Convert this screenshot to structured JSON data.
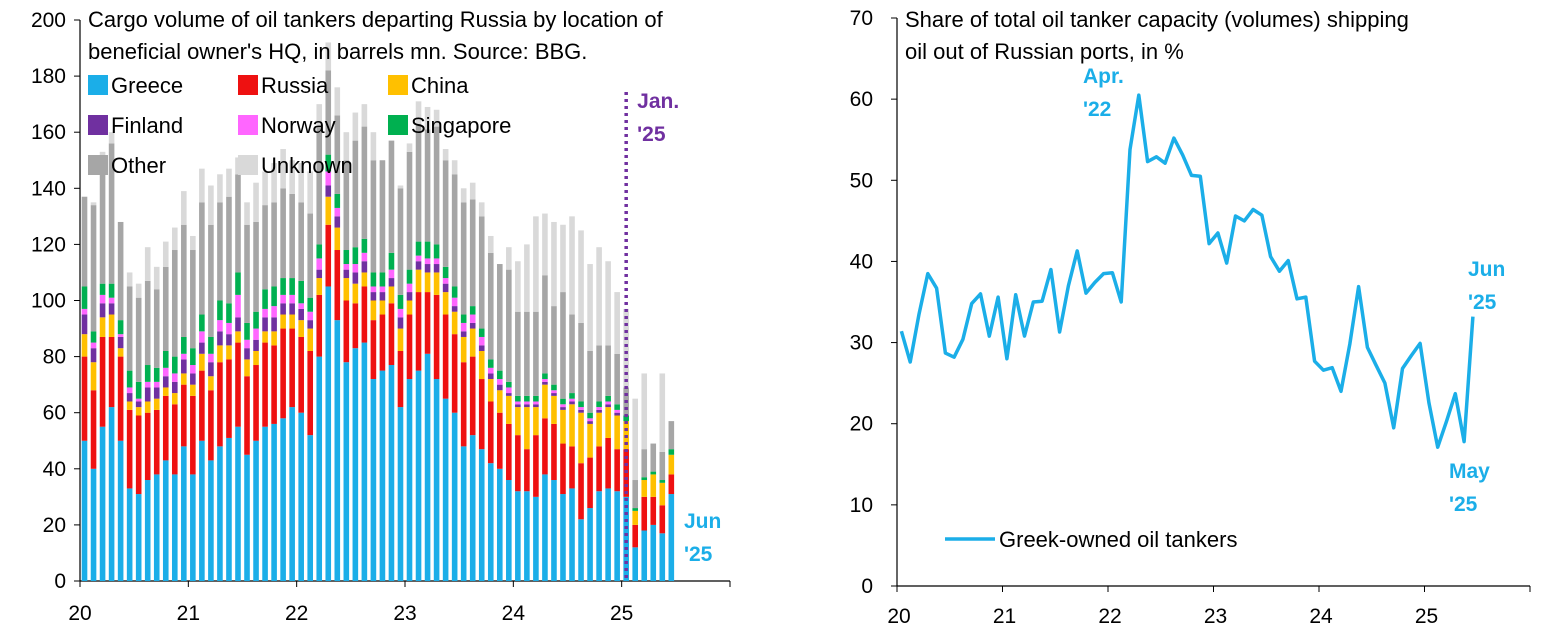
{
  "chart_data": [
    {
      "type": "bar",
      "stacked": true,
      "title": "Cargo volume of oil tankers departing Russia by location of beneficial owner's HQ, in barrels mn. Source: BBG.",
      "title_lines": [
        "Cargo volume of oil tankers departing Russia by location of",
        "beneficial owner's HQ, in barrels mn. Source: BBG."
      ],
      "x_range": [
        2020,
        2026
      ],
      "ylim": [
        0,
        200
      ],
      "y_ticks": [
        0,
        20,
        40,
        60,
        80,
        100,
        120,
        140,
        160,
        180,
        200
      ],
      "x_ticks": [
        {
          "value": 2020,
          "label": "20"
        },
        {
          "value": 2021,
          "label": "21"
        },
        {
          "value": 2022,
          "label": "22"
        },
        {
          "value": 2023,
          "label": "23"
        },
        {
          "value": 2024,
          "label": "24"
        },
        {
          "value": 2025,
          "label": "25"
        }
      ],
      "legend": [
        {
          "name": "Greece",
          "color": "#1BAEE8"
        },
        {
          "name": "Russia",
          "color": "#EE1111"
        },
        {
          "name": "China",
          "color": "#FFC000"
        },
        {
          "name": "Finland",
          "color": "#7030A0"
        },
        {
          "name": "Norway",
          "color": "#FF66FF"
        },
        {
          "name": "Singapore",
          "color": "#00B050"
        },
        {
          "name": "Other",
          "color": "#A6A6A6"
        },
        {
          "name": "Unknown",
          "color": "#D9D9D9"
        }
      ],
      "categories": [
        "2020-01",
        "2020-02",
        "2020-03",
        "2020-04",
        "2020-05",
        "2020-06",
        "2020-07",
        "2020-08",
        "2020-09",
        "2020-10",
        "2020-11",
        "2020-12",
        "2021-01",
        "2021-02",
        "2021-03",
        "2021-04",
        "2021-05",
        "2021-06",
        "2021-07",
        "2021-08",
        "2021-09",
        "2021-10",
        "2021-11",
        "2021-12",
        "2022-01",
        "2022-02",
        "2022-03",
        "2022-04",
        "2022-05",
        "2022-06",
        "2022-07",
        "2022-08",
        "2022-09",
        "2022-10",
        "2022-11",
        "2022-12",
        "2023-01",
        "2023-02",
        "2023-03",
        "2023-04",
        "2023-05",
        "2023-06",
        "2023-07",
        "2023-08",
        "2023-09",
        "2023-10",
        "2023-11",
        "2023-12",
        "2024-01",
        "2024-02",
        "2024-03",
        "2024-04",
        "2024-05",
        "2024-06",
        "2024-07",
        "2024-08",
        "2024-09",
        "2024-10",
        "2024-11",
        "2024-12",
        "2025-01",
        "2025-02",
        "2025-03",
        "2025-04",
        "2025-05",
        "2025-06"
      ],
      "series": [
        {
          "name": "Greece",
          "values": [
            50,
            40,
            55,
            62,
            50,
            33,
            31,
            36,
            38,
            43,
            38,
            48,
            38,
            50,
            43,
            48,
            51,
            55,
            45,
            50,
            55,
            56,
            58,
            62,
            60,
            52,
            80,
            105,
            93,
            78,
            83,
            85,
            72,
            75,
            77,
            62,
            72,
            75,
            81,
            72,
            65,
            60,
            48,
            52,
            47,
            42,
            40,
            36,
            32,
            32,
            30,
            38,
            36,
            31,
            33,
            22,
            26,
            32,
            33,
            32,
            30,
            12,
            18,
            20,
            17,
            31
          ],
          "labels": "Series order bottom to top: Greece, Russia, China, Finland, Norway, Singapore, Other, Unknown"
        },
        {
          "name": "Russia",
          "values": [
            30,
            28,
            32,
            25,
            30,
            28,
            28,
            24,
            23,
            23,
            25,
            22,
            28,
            25,
            25,
            30,
            28,
            30,
            28,
            27,
            30,
            28,
            32,
            28,
            27,
            30,
            22,
            22,
            25,
            22,
            16,
            20,
            21,
            20,
            22,
            20,
            23,
            28,
            22,
            30,
            30,
            28,
            30,
            28,
            25,
            22,
            20,
            20,
            20,
            15,
            22,
            20,
            20,
            18,
            15,
            20,
            18,
            16,
            18,
            15,
            17,
            8,
            12,
            10,
            10,
            7
          ]
        },
        {
          "name": "China",
          "values": [
            8,
            10,
            7,
            8,
            3,
            3,
            3,
            4,
            4,
            3,
            4,
            4,
            4,
            6,
            5,
            6,
            5,
            4,
            6,
            5,
            4,
            5,
            5,
            5,
            6,
            8,
            6,
            10,
            8,
            8,
            7,
            5,
            7,
            5,
            6,
            8,
            5,
            8,
            7,
            8,
            8,
            8,
            9,
            10,
            10,
            8,
            8,
            10,
            10,
            15,
            10,
            12,
            10,
            12,
            15,
            18,
            12,
            12,
            11,
            12,
            10,
            5,
            6,
            8,
            8,
            7
          ]
        },
        {
          "name": "Finland",
          "values": [
            7,
            5,
            5,
            4,
            4,
            3,
            2,
            5,
            4,
            4,
            4,
            5,
            4,
            4,
            5,
            5,
            4,
            5,
            4,
            4,
            5,
            5,
            4,
            4,
            4,
            3,
            3,
            4,
            4,
            3,
            4,
            4,
            3,
            3,
            3,
            4,
            3,
            3,
            3,
            3,
            3,
            2,
            2,
            2,
            2,
            2,
            2,
            1,
            1,
            1,
            1,
            1,
            1,
            1,
            1,
            1,
            1,
            1,
            1,
            1,
            0,
            0,
            0,
            0,
            0,
            0
          ]
        },
        {
          "name": "Norway",
          "values": [
            2,
            2,
            3,
            2,
            1,
            2,
            1,
            2,
            2,
            3,
            3,
            2,
            3,
            4,
            3,
            4,
            4,
            8,
            3,
            4,
            3,
            4,
            3,
            3,
            2,
            3,
            4,
            5,
            3,
            2,
            3,
            3,
            2,
            2,
            3,
            3,
            3,
            2,
            2,
            2,
            2,
            3,
            3,
            3,
            3,
            2,
            2,
            2,
            1,
            1,
            1,
            1,
            1,
            1,
            1,
            1,
            1,
            1,
            1,
            1,
            0,
            0,
            0,
            0,
            0,
            0
          ]
        },
        {
          "name": "Singapore",
          "values": [
            8,
            4,
            4,
            5,
            5,
            6,
            6,
            6,
            5,
            6,
            6,
            6,
            6,
            6,
            6,
            7,
            7,
            8,
            6,
            6,
            7,
            7,
            6,
            6,
            8,
            5,
            5,
            6,
            5,
            5,
            6,
            5,
            5,
            5,
            6,
            5,
            5,
            5,
            6,
            5,
            4,
            4,
            3,
            3,
            3,
            3,
            3,
            2,
            2,
            2,
            2,
            2,
            2,
            2,
            2,
            2,
            2,
            2,
            2,
            2,
            2,
            1,
            1,
            1,
            1,
            2
          ]
        },
        {
          "name": "Other",
          "values": [
            32,
            45,
            45,
            50,
            35,
            30,
            30,
            30,
            28,
            30,
            38,
            40,
            35,
            40,
            40,
            35,
            38,
            35,
            35,
            32,
            30,
            30,
            32,
            30,
            28,
            30,
            42,
            30,
            28,
            32,
            38,
            40,
            40,
            40,
            40,
            38,
            42,
            42,
            40,
            42,
            38,
            40,
            40,
            38,
            40,
            38,
            38,
            40,
            30,
            30,
            30,
            35,
            28,
            38,
            28,
            28,
            22,
            20,
            18,
            18,
            10,
            10,
            10,
            10,
            10,
            10
          ]
        },
        {
          "name": "Unknown",
          "values": [
            0,
            1,
            2,
            4,
            0,
            5,
            5,
            12,
            8,
            9,
            8,
            12,
            5,
            12,
            14,
            10,
            10,
            6,
            8,
            14,
            12,
            14,
            14,
            12,
            14,
            15,
            8,
            10,
            10,
            10,
            10,
            8,
            10,
            0,
            0,
            1,
            3,
            8,
            8,
            6,
            4,
            5,
            5,
            6,
            5,
            6,
            0,
            8,
            18,
            24,
            34,
            22,
            30,
            24,
            35,
            33,
            31,
            35,
            30,
            22,
            28,
            29,
            27,
            0,
            28,
            0
          ]
        }
      ],
      "annotations": [
        {
          "text_lines": [
            "Jan.",
            "'25"
          ],
          "color": "#7030A0",
          "at": "2025-01"
        },
        {
          "text_lines": [
            "Jun",
            "'25"
          ],
          "color": "#1BAEE8",
          "at": "2025-06"
        }
      ]
    },
    {
      "type": "line",
      "title": "Share of total oil tanker capacity (volumes) shipping oil out of Russian ports, in %",
      "title_lines": [
        "Share of total oil tanker capacity (volumes) shipping",
        "oil out of Russian ports, in %"
      ],
      "x_range": [
        2020,
        2026
      ],
      "ylim": [
        0,
        70
      ],
      "y_ticks": [
        0,
        10,
        20,
        30,
        40,
        50,
        60,
        70
      ],
      "x_ticks": [
        {
          "value": 2020,
          "label": "20"
        },
        {
          "value": 2021,
          "label": "21"
        },
        {
          "value": 2022,
          "label": "22"
        },
        {
          "value": 2023,
          "label": "23"
        },
        {
          "value": 2024,
          "label": "24"
        },
        {
          "value": 2025,
          "label": "25"
        }
      ],
      "legend": [
        {
          "name": "Greek-owned oil tankers",
          "color": "#1BAEE8"
        }
      ],
      "x": [
        "2020-01",
        "2020-02",
        "2020-03",
        "2020-04",
        "2020-05",
        "2020-06",
        "2020-07",
        "2020-08",
        "2020-09",
        "2020-10",
        "2020-11",
        "2020-12",
        "2021-01",
        "2021-02",
        "2021-03",
        "2021-04",
        "2021-05",
        "2021-06",
        "2021-07",
        "2021-08",
        "2021-09",
        "2021-10",
        "2021-11",
        "2021-12",
        "2022-01",
        "2022-02",
        "2022-03",
        "2022-04",
        "2022-05",
        "2022-06",
        "2022-07",
        "2022-08",
        "2022-09",
        "2022-10",
        "2022-11",
        "2022-12",
        "2023-01",
        "2023-02",
        "2023-03",
        "2023-04",
        "2023-05",
        "2023-06",
        "2023-07",
        "2023-08",
        "2023-09",
        "2023-10",
        "2023-11",
        "2023-12",
        "2024-01",
        "2024-02",
        "2024-03",
        "2024-04",
        "2024-05",
        "2024-06",
        "2024-07",
        "2024-08",
        "2024-09",
        "2024-10",
        "2024-11",
        "2024-12",
        "2025-01",
        "2025-02",
        "2025-03",
        "2025-04",
        "2025-05",
        "2025-06"
      ],
      "series": [
        {
          "name": "Greek-owned oil tankers",
          "values": [
            31.4,
            27.6,
            33.5,
            38.5,
            36.7,
            28.7,
            28.2,
            30.4,
            34.8,
            36.0,
            30.8,
            35.6,
            28.0,
            35.9,
            30.8,
            35.0,
            35.1,
            39.0,
            31.3,
            37.0,
            41.3,
            36.1,
            37.4,
            38.5,
            38.6,
            35.0,
            53.8,
            60.5,
            52.3,
            52.9,
            52.1,
            55.2,
            53.1,
            50.6,
            50.5,
            42.2,
            43.5,
            39.8,
            45.6,
            45.0,
            46.4,
            45.7,
            40.6,
            38.8,
            40.1,
            35.4,
            35.6,
            27.7,
            26.6,
            26.9,
            24.0,
            29.8,
            36.9,
            29.4,
            27.2,
            25.0,
            19.5,
            26.8,
            28.4,
            29.9,
            22.6,
            17.1,
            20.3,
            23.7,
            17.8,
            33.2
          ]
        }
      ],
      "annotations": [
        {
          "text_lines": [
            "Apr.",
            "'22"
          ],
          "color": "#1BAEE8",
          "at": "2022-04"
        },
        {
          "text_lines": [
            "Jun",
            "'25"
          ],
          "color": "#1BAEE8",
          "at": "2025-06"
        },
        {
          "text_lines": [
            "May",
            "'25"
          ],
          "color": "#1BAEE8",
          "at": "2025-05"
        }
      ]
    }
  ]
}
